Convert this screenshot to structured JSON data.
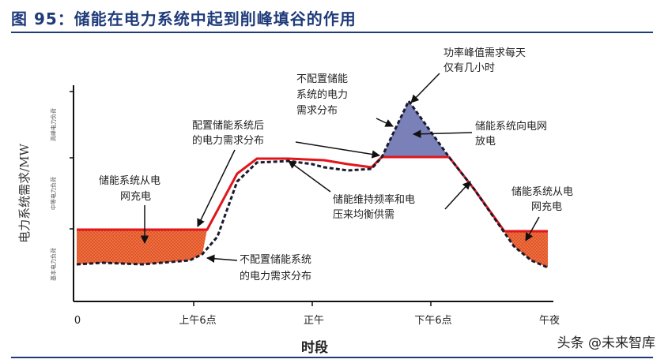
{
  "title": "图 95：储能在电力系统中起到削峰填谷的作用",
  "watermark": "头条 @未来智库",
  "axis": {
    "ylabel": "电力系统需求/MW",
    "xlabel": "时段",
    "bands": [
      "高峰电力负荷",
      "中等电力负荷",
      "基本电力负荷"
    ],
    "x_ticks": [
      "0",
      "上午6点",
      "正午",
      "下午6点",
      "午夜"
    ]
  },
  "annotations": {
    "peak_hours": [
      "功率峰值需求每天",
      "仅有几小时"
    ],
    "no_storage_peak": [
      "不配置储能",
      "系统的电力",
      "需求分布"
    ],
    "with_storage": [
      "配置储能系统后",
      "的电力需求分布"
    ],
    "discharge": [
      "储能系统向电网",
      "放电"
    ],
    "freq_voltage": [
      "储能维持频率和电",
      "压来均衡供需"
    ],
    "charge_left": [
      "储能系统从电",
      "网充电"
    ],
    "charge_right": [
      "储能系统从电",
      "网充电"
    ],
    "no_storage_low": [
      "不配置储能系统",
      "的电力需求分布"
    ]
  },
  "colors": {
    "with_storage_line": "#e0161b",
    "no_storage_line": "#1a1a2e",
    "charge_fill": "#f26d3d",
    "discharge_fill": "#7a80b8",
    "title": "#1f3b7a"
  }
}
